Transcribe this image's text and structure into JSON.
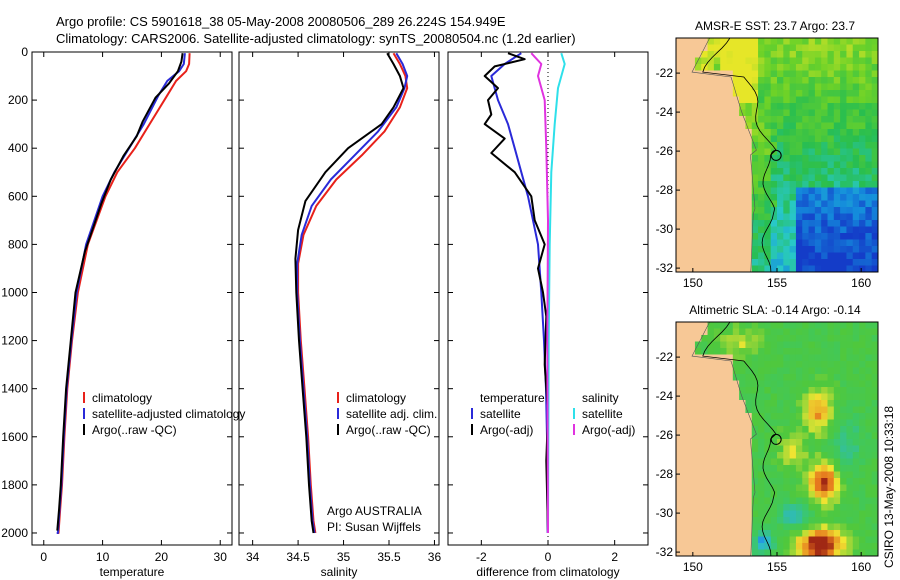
{
  "header": {
    "line1": "Argo profile: CS 5901618_38 05-May-2008 20080506_289 26.224S 154.949E",
    "line2": "Climatology: CARS2006. Satellite-adjusted climatology: synTS_20080504.nc (1.2d earlier)"
  },
  "footer": {
    "credit": "CSIRO 13-May-2008 10:33:18",
    "argo_line1": "Argo AUSTRALIA",
    "argo_line2": "PI: Susan Wijffels"
  },
  "colors": {
    "climatology": "#e8211a",
    "satellite": "#2a2ad8",
    "argo": "#000000",
    "satellite_salinity": "#2ee0ea",
    "argo_salinity": "#e033e0",
    "land": "#f7c896"
  },
  "chart_data": [
    {
      "type": "line",
      "id": "temperature",
      "xlabel": "temperature",
      "ylabel": "",
      "xlim": [
        -2,
        32
      ],
      "ylim": [
        2050,
        0
      ],
      "xticks": [
        0,
        10,
        20,
        30
      ],
      "yticks": [
        0,
        200,
        400,
        600,
        800,
        1000,
        1200,
        1400,
        1600,
        1800,
        2000
      ],
      "legend": [
        "climatology",
        "satellite-adjusted climatology",
        "Argo(..raw -QC)"
      ],
      "series": [
        {
          "name": "climatology",
          "color": "#e8211a",
          "x": [
            24.8,
            24.7,
            24.2,
            22.5,
            21.0,
            18.0,
            15.5,
            12.5,
            10.5,
            9.0,
            7.5,
            5.8,
            4.8,
            4.0,
            3.5,
            3.1,
            2.8,
            2.5,
            2.3
          ],
          "y": [
            5,
            50,
            80,
            120,
            180,
            300,
            400,
            500,
            600,
            700,
            800,
            1000,
            1200,
            1400,
            1600,
            1800,
            1900,
            2000,
            2000
          ]
        },
        {
          "name": "satellite-adjusted climatology",
          "color": "#2a2ad8",
          "x": [
            24.0,
            23.8,
            23.0,
            21.0,
            19.5,
            17.0,
            14.5,
            12.0,
            10.0,
            8.6,
            7.2,
            5.6,
            4.7,
            3.9,
            3.4,
            3.0,
            2.7,
            2.4,
            2.2
          ],
          "y": [
            5,
            50,
            80,
            120,
            180,
            300,
            400,
            500,
            600,
            700,
            800,
            1000,
            1200,
            1400,
            1600,
            1800,
            1900,
            2000,
            2000
          ]
        },
        {
          "name": "Argo(..raw -QC)",
          "color": "#000000",
          "x": [
            23.6,
            23.4,
            22.8,
            21.3,
            19.0,
            16.8,
            15.8,
            13.6,
            11.4,
            9.8,
            8.4,
            7.0,
            5.4,
            4.6,
            3.8,
            3.3,
            2.9,
            2.6,
            2.3
          ],
          "y": [
            5,
            40,
            80,
            130,
            190,
            290,
            350,
            430,
            530,
            630,
            730,
            830,
            1000,
            1200,
            1400,
            1600,
            1800,
            1900,
            1990
          ]
        }
      ]
    },
    {
      "type": "line",
      "id": "salinity",
      "xlabel": "salinity",
      "ylabel": "",
      "xlim": [
        33.85,
        36.05
      ],
      "ylim": [
        2050,
        0
      ],
      "xticks": [
        34,
        34.5,
        35,
        35.5,
        36
      ],
      "yticks": [],
      "legend": [
        "climatology",
        "satellite adj. clim.",
        "Argo(..raw -QC)"
      ],
      "series": [
        {
          "name": "climatology",
          "color": "#e8211a",
          "x": [
            35.55,
            35.62,
            35.68,
            35.7,
            35.62,
            35.45,
            35.2,
            34.92,
            34.7,
            34.56,
            34.5,
            34.5,
            34.53,
            34.57,
            34.61,
            34.64,
            34.67,
            34.69
          ],
          "y": [
            5,
            50,
            100,
            150,
            230,
            330,
            430,
            530,
            640,
            760,
            880,
            1000,
            1200,
            1400,
            1600,
            1800,
            1950,
            2000
          ]
        },
        {
          "name": "satellite adj. clim.",
          "color": "#2a2ad8",
          "x": [
            35.58,
            35.65,
            35.7,
            35.67,
            35.58,
            35.38,
            35.12,
            34.86,
            34.65,
            34.54,
            34.49,
            34.49,
            34.52,
            34.56,
            34.6,
            34.63,
            34.66,
            34.68
          ],
          "y": [
            5,
            50,
            100,
            150,
            230,
            330,
            430,
            530,
            640,
            760,
            880,
            1000,
            1200,
            1400,
            1600,
            1800,
            1950,
            2000
          ]
        },
        {
          "name": "Argo(..raw -QC)",
          "color": "#000000",
          "x": [
            35.48,
            35.55,
            35.62,
            35.66,
            35.55,
            35.42,
            35.05,
            34.8,
            34.58,
            34.5,
            34.47,
            34.48,
            34.51,
            34.55,
            34.59,
            34.62,
            34.65,
            34.67
          ],
          "y": [
            5,
            50,
            100,
            150,
            230,
            300,
            400,
            500,
            620,
            740,
            860,
            1000,
            1200,
            1400,
            1600,
            1800,
            1950,
            2000
          ]
        }
      ]
    },
    {
      "type": "line",
      "id": "difference",
      "xlabel": "difference from climatology",
      "ylabel": "",
      "xlim": [
        -3,
        3
      ],
      "ylim": [
        2050,
        0
      ],
      "xticks": [
        -2,
        0,
        2
      ],
      "yticks": [],
      "legend_groups": [
        {
          "title": "temperature",
          "entries": [
            "satellite",
            "Argo(-adj)"
          ]
        },
        {
          "title": "salinity",
          "entries": [
            "satellite",
            "Argo(-adj)"
          ]
        }
      ],
      "series": [
        {
          "name": "temperature satellite",
          "color": "#2a2ad8",
          "x": [
            -0.8,
            -1.3,
            -1.7,
            -1.5,
            -1.2,
            -1.0,
            -0.8,
            -0.6,
            -0.45,
            -0.3,
            -0.2,
            -0.12,
            -0.06,
            -0.03,
            -0.02,
            -0.01
          ],
          "y": [
            5,
            50,
            100,
            200,
            300,
            400,
            500,
            600,
            700,
            800,
            1000,
            1200,
            1400,
            1600,
            1800,
            2000
          ]
        },
        {
          "name": "temperature Argo(-adj)",
          "color": "#000000",
          "x": [
            -1.2,
            -0.7,
            -1.6,
            -1.9,
            -1.5,
            -1.8,
            -1.7,
            -1.9,
            -1.3,
            -1.7,
            -1.0,
            -0.5,
            -0.4,
            -0.1,
            -0.3,
            -0.15,
            -0.05,
            -0.1,
            0.0,
            -0.05,
            0.0
          ],
          "y": [
            5,
            30,
            60,
            100,
            150,
            200,
            260,
            300,
            360,
            420,
            500,
            600,
            700,
            800,
            900,
            1000,
            1100,
            1300,
            1500,
            1700,
            2000
          ]
        },
        {
          "name": "salinity satellite",
          "color": "#2ee0ea",
          "x": [
            0.4,
            0.5,
            0.3,
            0.2,
            0.1,
            0.05,
            0.02,
            0.0
          ],
          "y": [
            5,
            50,
            150,
            300,
            500,
            800,
            1200,
            2000
          ]
        },
        {
          "name": "salinity Argo(-adj)",
          "color": "#e033e0",
          "x": [
            -0.5,
            -0.2,
            -0.3,
            -0.1,
            -0.05,
            0.0,
            -0.02,
            0.0
          ],
          "y": [
            5,
            50,
            100,
            200,
            400,
            700,
            1200,
            2000
          ]
        }
      ]
    },
    {
      "type": "heatmap",
      "id": "sst_map",
      "title": "AMSR-E SST: 23.7 Argo: 23.7",
      "xlim": [
        149,
        161
      ],
      "ylim": [
        -32.2,
        -20.2
      ],
      "xticks": [
        150,
        155,
        160
      ],
      "yticks": [
        -22,
        -24,
        -26,
        -28,
        -30,
        -32
      ],
      "marker": {
        "lon": 154.95,
        "lat": -26.22
      }
    },
    {
      "type": "heatmap",
      "id": "sla_map",
      "title": "Altimetric SLA: -0.14 Argo: -0.14",
      "xlim": [
        149,
        161
      ],
      "ylim": [
        -32.2,
        -20.2
      ],
      "xticks": [
        150,
        155,
        160
      ],
      "yticks": [
        -22,
        -24,
        -26,
        -28,
        -30,
        -32
      ],
      "marker": {
        "lon": 154.95,
        "lat": -26.22
      }
    }
  ]
}
